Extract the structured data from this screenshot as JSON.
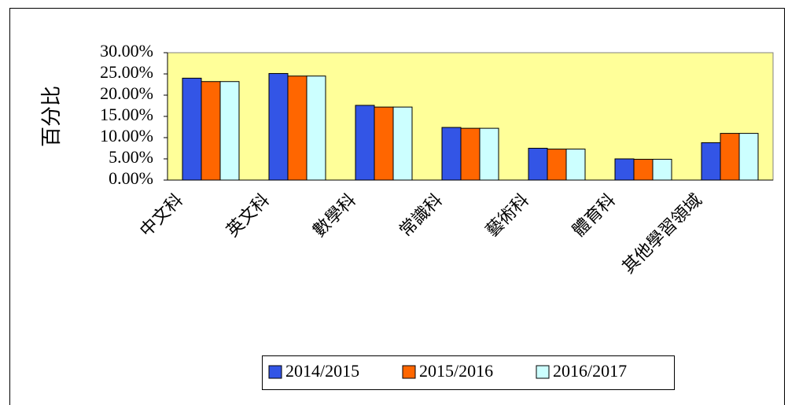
{
  "chart_data": {
    "type": "bar",
    "y_label": "百分比",
    "categories": [
      "中文科",
      "英文科",
      "數學科",
      "常識科",
      "藝術科",
      "體育科",
      "其他學習領域"
    ],
    "series": [
      {
        "name": "2014/2015",
        "color": "#3355e6",
        "values": [
          24.0,
          25.1,
          17.6,
          12.4,
          7.5,
          5.0,
          8.8
        ]
      },
      {
        "name": "2015/2016",
        "color": "#ff6600",
        "values": [
          23.2,
          24.5,
          17.2,
          12.2,
          7.3,
          4.9,
          11.0
        ]
      },
      {
        "name": "2016/2017",
        "color": "#ccffff",
        "values": [
          23.2,
          24.5,
          17.2,
          12.2,
          7.3,
          4.9,
          11.0
        ]
      }
    ],
    "ylim": [
      0,
      30
    ],
    "yticks": [
      {
        "value": 0,
        "label": "0.00%"
      },
      {
        "value": 5,
        "label": "5.00%"
      },
      {
        "value": 10,
        "label": "10.00%"
      },
      {
        "value": 15,
        "label": "15.00%"
      },
      {
        "value": 20,
        "label": "20.00%"
      },
      {
        "value": 25,
        "label": "25.00%"
      },
      {
        "value": 30,
        "label": "30.00%"
      }
    ],
    "plot_background": "#ffff99",
    "legend": "bottom"
  }
}
